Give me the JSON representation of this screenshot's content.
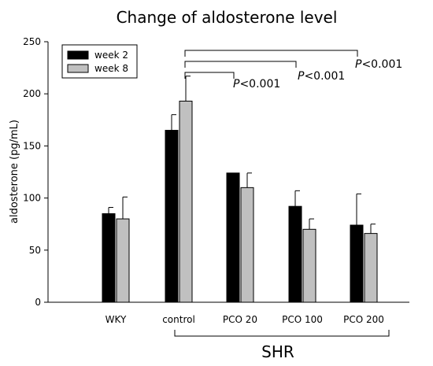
{
  "chart_data": {
    "type": "bar",
    "title": "Change of aldosterone level",
    "xlabel": "",
    "ylabel": "aldosterone (pg/mL)",
    "ylim": [
      0,
      250
    ],
    "yticks": [
      0,
      50,
      100,
      150,
      200,
      250
    ],
    "categories": [
      "WKY",
      "control",
      "PCO 20",
      "PCO 100",
      "PCO 200"
    ],
    "series": [
      {
        "name": "week 2",
        "color": "#000000",
        "values": [
          85,
          165,
          124,
          92,
          74
        ],
        "errors": [
          6,
          15,
          0,
          15,
          30
        ]
      },
      {
        "name": "week 8",
        "color": "#c0c0c0",
        "values": [
          80,
          193,
          110,
          70,
          66
        ],
        "errors": [
          21,
          24,
          14,
          10,
          9
        ]
      }
    ],
    "legend_position": "top-left",
    "group_label": "SHR",
    "annotations": [
      {
        "prefix": "P",
        "text": "<0.001",
        "from": "control",
        "to": "PCO 20"
      },
      {
        "prefix": "P",
        "text": "<0.001",
        "from": "control",
        "to": "PCO 100"
      },
      {
        "prefix": "P",
        "text": "<0.001",
        "from": "control",
        "to": "PCO 200"
      }
    ]
  }
}
